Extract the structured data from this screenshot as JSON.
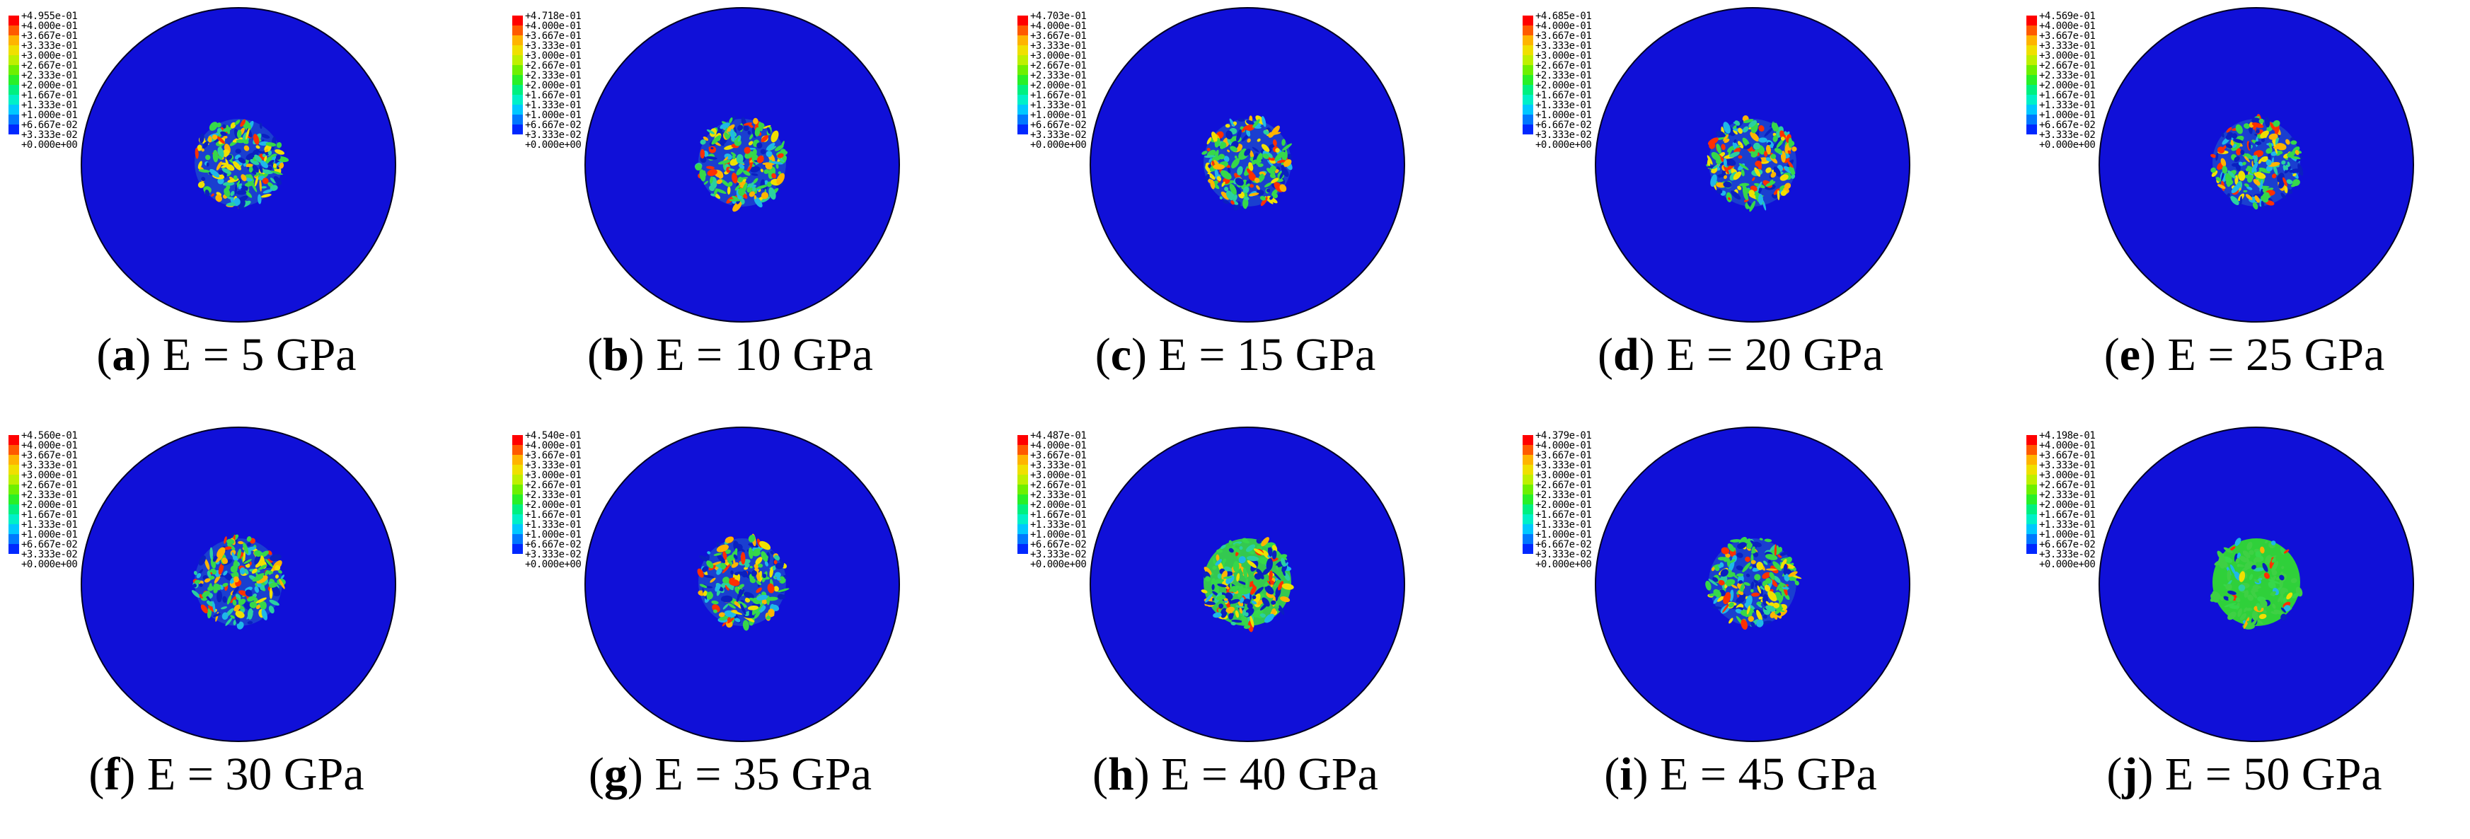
{
  "legend_colors": [
    "#ff0000",
    "#ff5a00",
    "#ffb400",
    "#f0e000",
    "#bef000",
    "#6ef000",
    "#28f028",
    "#00f080",
    "#00f0c8",
    "#00c8ff",
    "#0078ff",
    "#0028ff"
  ],
  "legend_values": [
    "+3.667e-01",
    "+3.333e-01",
    "+3.000e-01",
    "+2.667e-01",
    "+2.333e-01",
    "+2.000e-01",
    "+1.667e-01",
    "+1.333e-01",
    "+1.000e-01",
    "+6.667e-02",
    "+3.333e-02",
    "+0.000e+00"
  ],
  "legend_second": "+4.000e-01",
  "disk_color": "#1010d8",
  "panels": [
    {
      "letter": "a",
      "max": "+4.955e-01",
      "caption": " E = 5 GPa"
    },
    {
      "letter": "b",
      "max": "+4.718e-01",
      "caption": " E = 10 GPa"
    },
    {
      "letter": "c",
      "max": "+4.703e-01",
      "caption": " E = 15 GPa"
    },
    {
      "letter": "d",
      "max": "+4.685e-01",
      "caption": " E = 20 GPa"
    },
    {
      "letter": "e",
      "max": "+4.569e-01",
      "caption": " E = 25 GPa"
    },
    {
      "letter": "f",
      "max": "+4.560e-01",
      "caption": " E = 30 GPa"
    },
    {
      "letter": "g",
      "max": "+4.540e-01",
      "caption": " E = 35 GPa"
    },
    {
      "letter": "h",
      "max": "+4.487e-01",
      "caption": " E = 40 GPa"
    },
    {
      "letter": "i",
      "max": "+4.379e-01",
      "caption": " E = 45 GPa"
    },
    {
      "letter": "j",
      "max": "+4.198e-01",
      "caption": " E = 50 GPa"
    }
  ]
}
